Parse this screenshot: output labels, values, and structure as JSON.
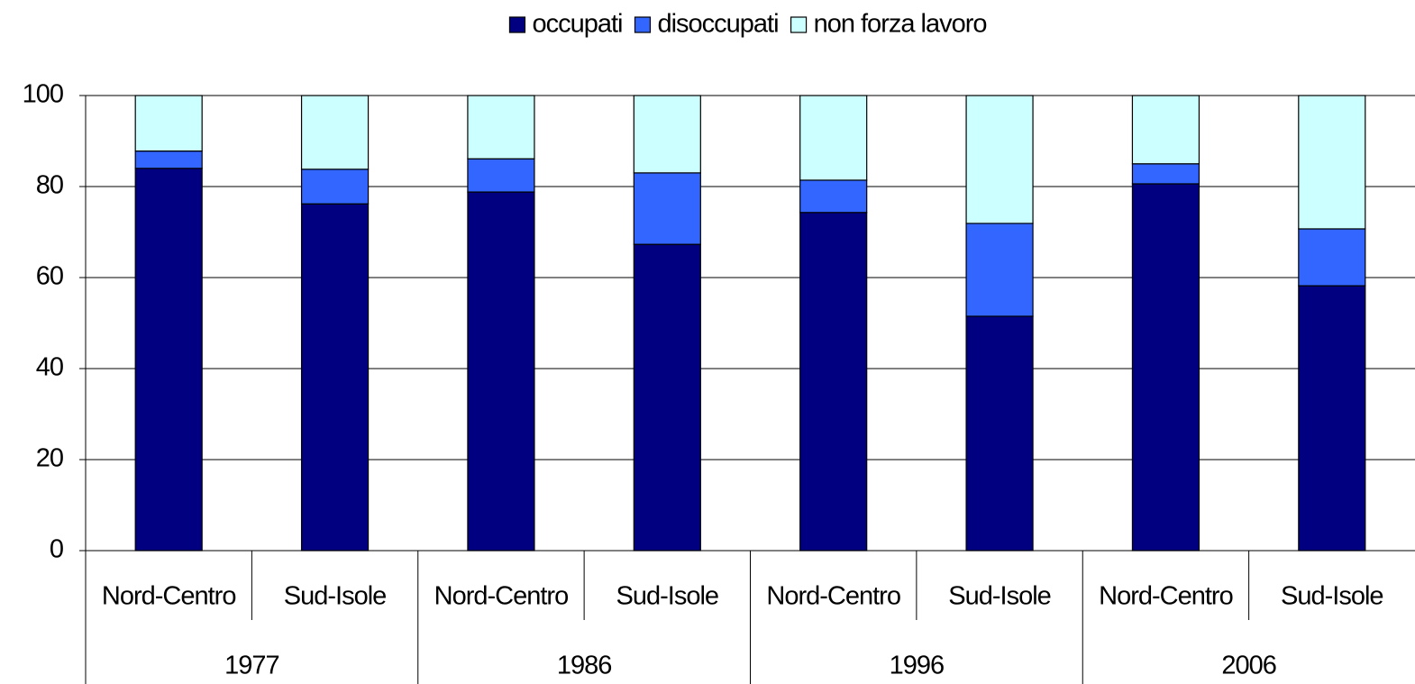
{
  "chart_data": {
    "type": "stacked-bar",
    "categories": [
      "Nord-Centro",
      "Sud-Isole",
      "Nord-Centro",
      "Sud-Isole",
      "Nord-Centro",
      "Sud-Isole",
      "Nord-Centro",
      "Sud-Isole"
    ],
    "groups": [
      "1977",
      "1986",
      "1996",
      "2006"
    ],
    "series": [
      {
        "name": "occupati",
        "color": "#000080",
        "values": [
          84.0,
          76.2,
          78.8,
          67.3,
          74.3,
          51.5,
          80.6,
          58.2
        ]
      },
      {
        "name": "disoccupati",
        "color": "#3366ff",
        "values": [
          3.8,
          7.6,
          7.3,
          15.7,
          7.1,
          20.4,
          4.4,
          12.5
        ]
      },
      {
        "name": "non forza lavoro",
        "color": "#ccffff",
        "values": [
          12.2,
          16.2,
          13.9,
          17.0,
          18.6,
          28.1,
          15.0,
          29.3
        ]
      }
    ],
    "ylim": [
      0,
      100
    ],
    "yticks": [
      0,
      20,
      40,
      60,
      80,
      100
    ],
    "grid": true,
    "legend": "top"
  }
}
